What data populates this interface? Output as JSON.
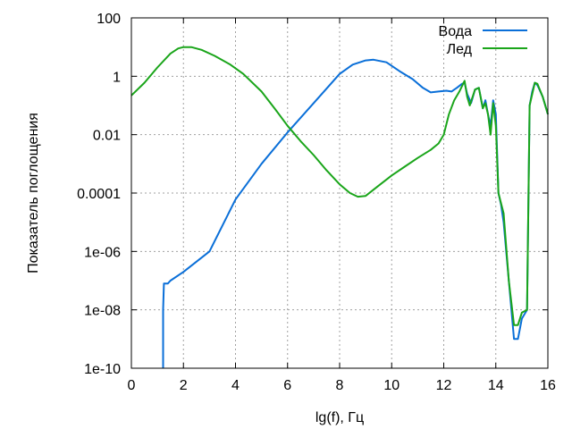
{
  "chart_data": {
    "type": "line",
    "xlabel": "lg(f), Гц",
    "ylabel": "Показатель поглощения",
    "xlim": [
      0,
      16
    ],
    "ylim": [
      1e-10,
      100
    ],
    "y_scale": "log",
    "grid": true,
    "legend_position": "top-right",
    "x_ticks": [
      0,
      2,
      4,
      6,
      8,
      10,
      12,
      14,
      16
    ],
    "x_tick_labels": [
      "0",
      "2",
      "4",
      "6",
      "8",
      "10",
      "12",
      "14",
      "16"
    ],
    "y_ticks": [
      1e-10,
      1e-08,
      1e-06,
      0.0001,
      0.01,
      1,
      100
    ],
    "y_tick_labels": [
      "1e-10",
      "1e-08",
      "1e-06",
      "0.0001",
      "0.01",
      "1",
      "100"
    ],
    "series": [
      {
        "name": "Вода",
        "color": "#0a6fd8",
        "points": [
          [
            1.22,
            1e-10
          ],
          [
            1.22,
            1e-08
          ],
          [
            1.25,
            8e-08
          ],
          [
            1.4,
            8e-08
          ],
          [
            1.5,
            1e-07
          ],
          [
            2,
            2e-07
          ],
          [
            3,
            1e-06
          ],
          [
            4,
            6e-05
          ],
          [
            5,
            0.001
          ],
          [
            6,
            0.012
          ],
          [
            7,
            0.12
          ],
          [
            8,
            1.2
          ],
          [
            8.5,
            2.5
          ],
          [
            9,
            3.5
          ],
          [
            9.3,
            3.7
          ],
          [
            9.8,
            3.0
          ],
          [
            10.3,
            1.5
          ],
          [
            10.8,
            0.8
          ],
          [
            11.2,
            0.4
          ],
          [
            11.5,
            0.28
          ],
          [
            11.8,
            0.3
          ],
          [
            12.1,
            0.32
          ],
          [
            12.3,
            0.3
          ],
          [
            12.5,
            0.4
          ],
          [
            12.7,
            0.55
          ],
          [
            12.8,
            0.6
          ],
          [
            12.9,
            0.25
          ],
          [
            13.05,
            0.12
          ],
          [
            13.2,
            0.35
          ],
          [
            13.35,
            0.4
          ],
          [
            13.5,
            0.08
          ],
          [
            13.6,
            0.15
          ],
          [
            13.7,
            0.05
          ],
          [
            13.8,
            0.02
          ],
          [
            13.9,
            0.15
          ],
          [
            14.0,
            0.05
          ],
          [
            14.1,
            0.0001
          ],
          [
            14.2,
            4e-05
          ],
          [
            14.3,
            1e-05
          ],
          [
            14.5,
            1e-07
          ],
          [
            14.7,
            1e-09
          ],
          [
            14.85,
            1e-09
          ],
          [
            15.0,
            5e-09
          ],
          [
            15.2,
            1e-08
          ],
          [
            15.3,
            0.1
          ],
          [
            15.4,
            0.3
          ],
          [
            15.5,
            0.6
          ],
          [
            15.6,
            0.5
          ],
          [
            15.8,
            0.2
          ],
          [
            16,
            0.05
          ]
        ]
      },
      {
        "name": "Лед",
        "color": "#1aa51a",
        "points": [
          [
            0,
            0.22
          ],
          [
            0.5,
            0.6
          ],
          [
            1,
            2.0
          ],
          [
            1.5,
            6.0
          ],
          [
            1.8,
            9.0
          ],
          [
            2.0,
            10.0
          ],
          [
            2.3,
            10.0
          ],
          [
            2.7,
            8.0
          ],
          [
            3.2,
            5.0
          ],
          [
            3.8,
            2.5
          ],
          [
            4.3,
            1.2
          ],
          [
            5,
            0.3
          ],
          [
            5.5,
            0.08
          ],
          [
            6,
            0.02
          ],
          [
            6.5,
            0.006
          ],
          [
            7,
            0.002
          ],
          [
            7.5,
            0.0006
          ],
          [
            8,
            0.0002
          ],
          [
            8.4,
            0.0001
          ],
          [
            8.7,
            7.5e-05
          ],
          [
            9.0,
            8e-05
          ],
          [
            9.5,
            0.00018
          ],
          [
            10,
            0.0004
          ],
          [
            10.5,
            0.0008
          ],
          [
            11,
            0.0016
          ],
          [
            11.5,
            0.003
          ],
          [
            11.8,
            0.005
          ],
          [
            12.0,
            0.01
          ],
          [
            12.2,
            0.05
          ],
          [
            12.4,
            0.15
          ],
          [
            12.6,
            0.3
          ],
          [
            12.8,
            0.7
          ],
          [
            12.9,
            0.2
          ],
          [
            13.0,
            0.1
          ],
          [
            13.2,
            0.35
          ],
          [
            13.35,
            0.4
          ],
          [
            13.5,
            0.08
          ],
          [
            13.6,
            0.12
          ],
          [
            13.7,
            0.05
          ],
          [
            13.8,
            0.01
          ],
          [
            13.9,
            0.12
          ],
          [
            14.0,
            0.02
          ],
          [
            14.1,
            0.0001
          ],
          [
            14.3,
            2e-05
          ],
          [
            14.5,
            1e-07
          ],
          [
            14.7,
            3e-09
          ],
          [
            14.85,
            3e-09
          ],
          [
            15.0,
            8e-09
          ],
          [
            15.2,
            1e-08
          ],
          [
            15.3,
            0.1
          ],
          [
            15.5,
            0.6
          ],
          [
            15.6,
            0.55
          ],
          [
            15.8,
            0.2
          ],
          [
            16,
            0.05
          ]
        ]
      }
    ]
  }
}
